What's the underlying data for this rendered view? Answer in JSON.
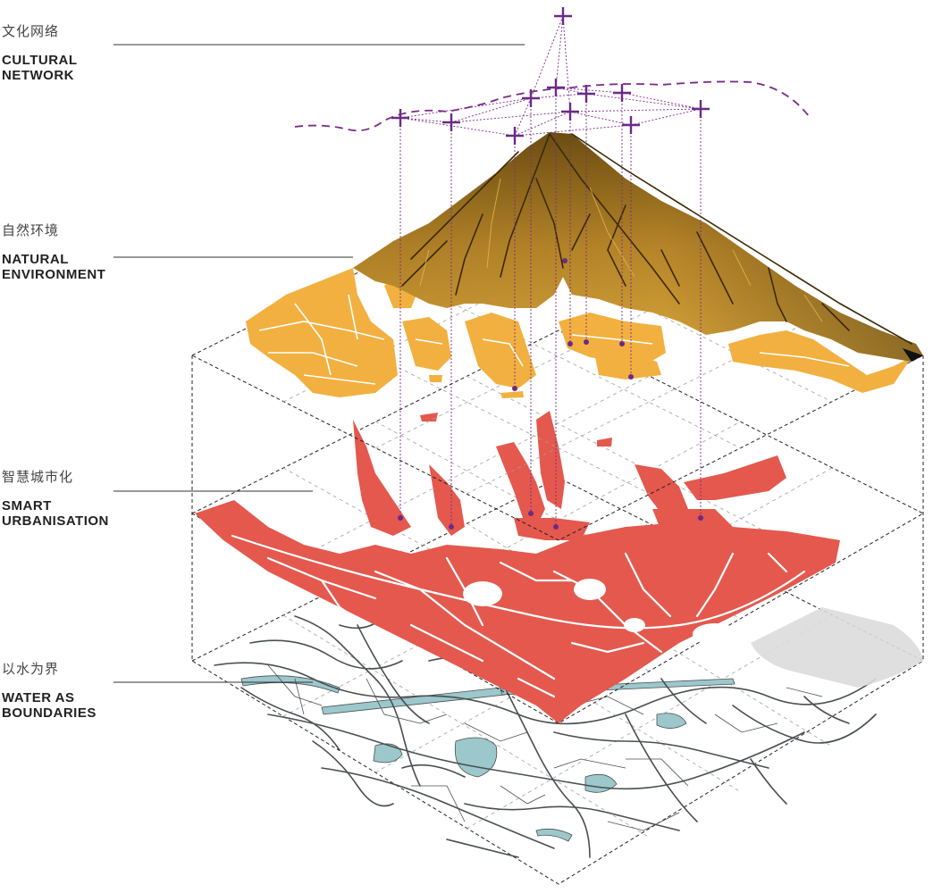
{
  "layers": [
    {
      "zh": "文化网络",
      "en": [
        "CULTURAL",
        "NETWORK"
      ],
      "color": "#6b2a86"
    },
    {
      "zh": "自然环境",
      "en": [
        "NATURAL",
        "ENVIRONMENT"
      ],
      "color": "#f2b040"
    },
    {
      "zh": "智慧城市化",
      "en": [
        "SMART",
        "URBANISATION"
      ],
      "color": "#e4584d"
    },
    {
      "zh": "以水为界",
      "en": [
        "WATER AS",
        "BOUNDARIES"
      ],
      "color": "#9cc8cc"
    }
  ],
  "palette": {
    "mountain_dark": "#5c4310",
    "mountain_mid": "#a77a22",
    "mountain_light": "#d9a63c",
    "road": "#4b4f52",
    "grid": "#9a9a9a",
    "frame": "#222222"
  }
}
